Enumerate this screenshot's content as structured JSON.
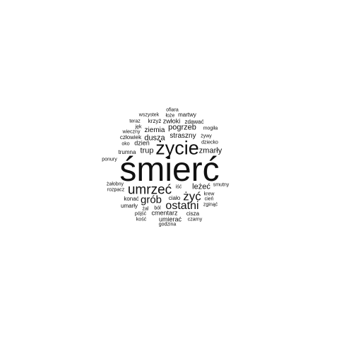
{
  "word_cloud": {
    "text_color": "#111111",
    "background_color": "#ffffff",
    "words": [
      {
        "text": "śmierć"
      },
      {
        "text": "życie"
      },
      {
        "text": "umrzeć"
      },
      {
        "text": "ostatni"
      },
      {
        "text": "grób"
      },
      {
        "text": "żyć"
      },
      {
        "text": "dusza"
      },
      {
        "text": "pogrzeb"
      },
      {
        "text": "trup"
      },
      {
        "text": "zmarły"
      },
      {
        "text": "straszny"
      },
      {
        "text": "leżeć"
      },
      {
        "text": "ziemia"
      },
      {
        "text": "zwłoki"
      },
      {
        "text": "dzień"
      },
      {
        "text": "trumna"
      },
      {
        "text": "człowiek"
      },
      {
        "text": "krzyż"
      },
      {
        "text": "zdawać"
      },
      {
        "text": "martwy"
      },
      {
        "text": "ofiara"
      },
      {
        "text": "łoże"
      },
      {
        "text": "wszystek"
      },
      {
        "text": "teraz"
      },
      {
        "text": "jęk"
      },
      {
        "text": "wieczny"
      },
      {
        "text": "mogiła"
      },
      {
        "text": "żywy"
      },
      {
        "text": "dziecko"
      },
      {
        "text": "oko"
      },
      {
        "text": "ponury"
      },
      {
        "text": "żałobny"
      },
      {
        "text": "iść"
      },
      {
        "text": "smutny"
      },
      {
        "text": "rozpacz"
      },
      {
        "text": "krew"
      },
      {
        "text": "ciało"
      },
      {
        "text": "konać"
      },
      {
        "text": "cień"
      },
      {
        "text": "umarły"
      },
      {
        "text": "zginąć"
      },
      {
        "text": "żal"
      },
      {
        "text": "ból"
      },
      {
        "text": "cmentarz"
      },
      {
        "text": "pójść"
      },
      {
        "text": "cisza"
      },
      {
        "text": "kość"
      },
      {
        "text": "umierać"
      },
      {
        "text": "czarny"
      },
      {
        "text": "godzina"
      }
    ]
  }
}
